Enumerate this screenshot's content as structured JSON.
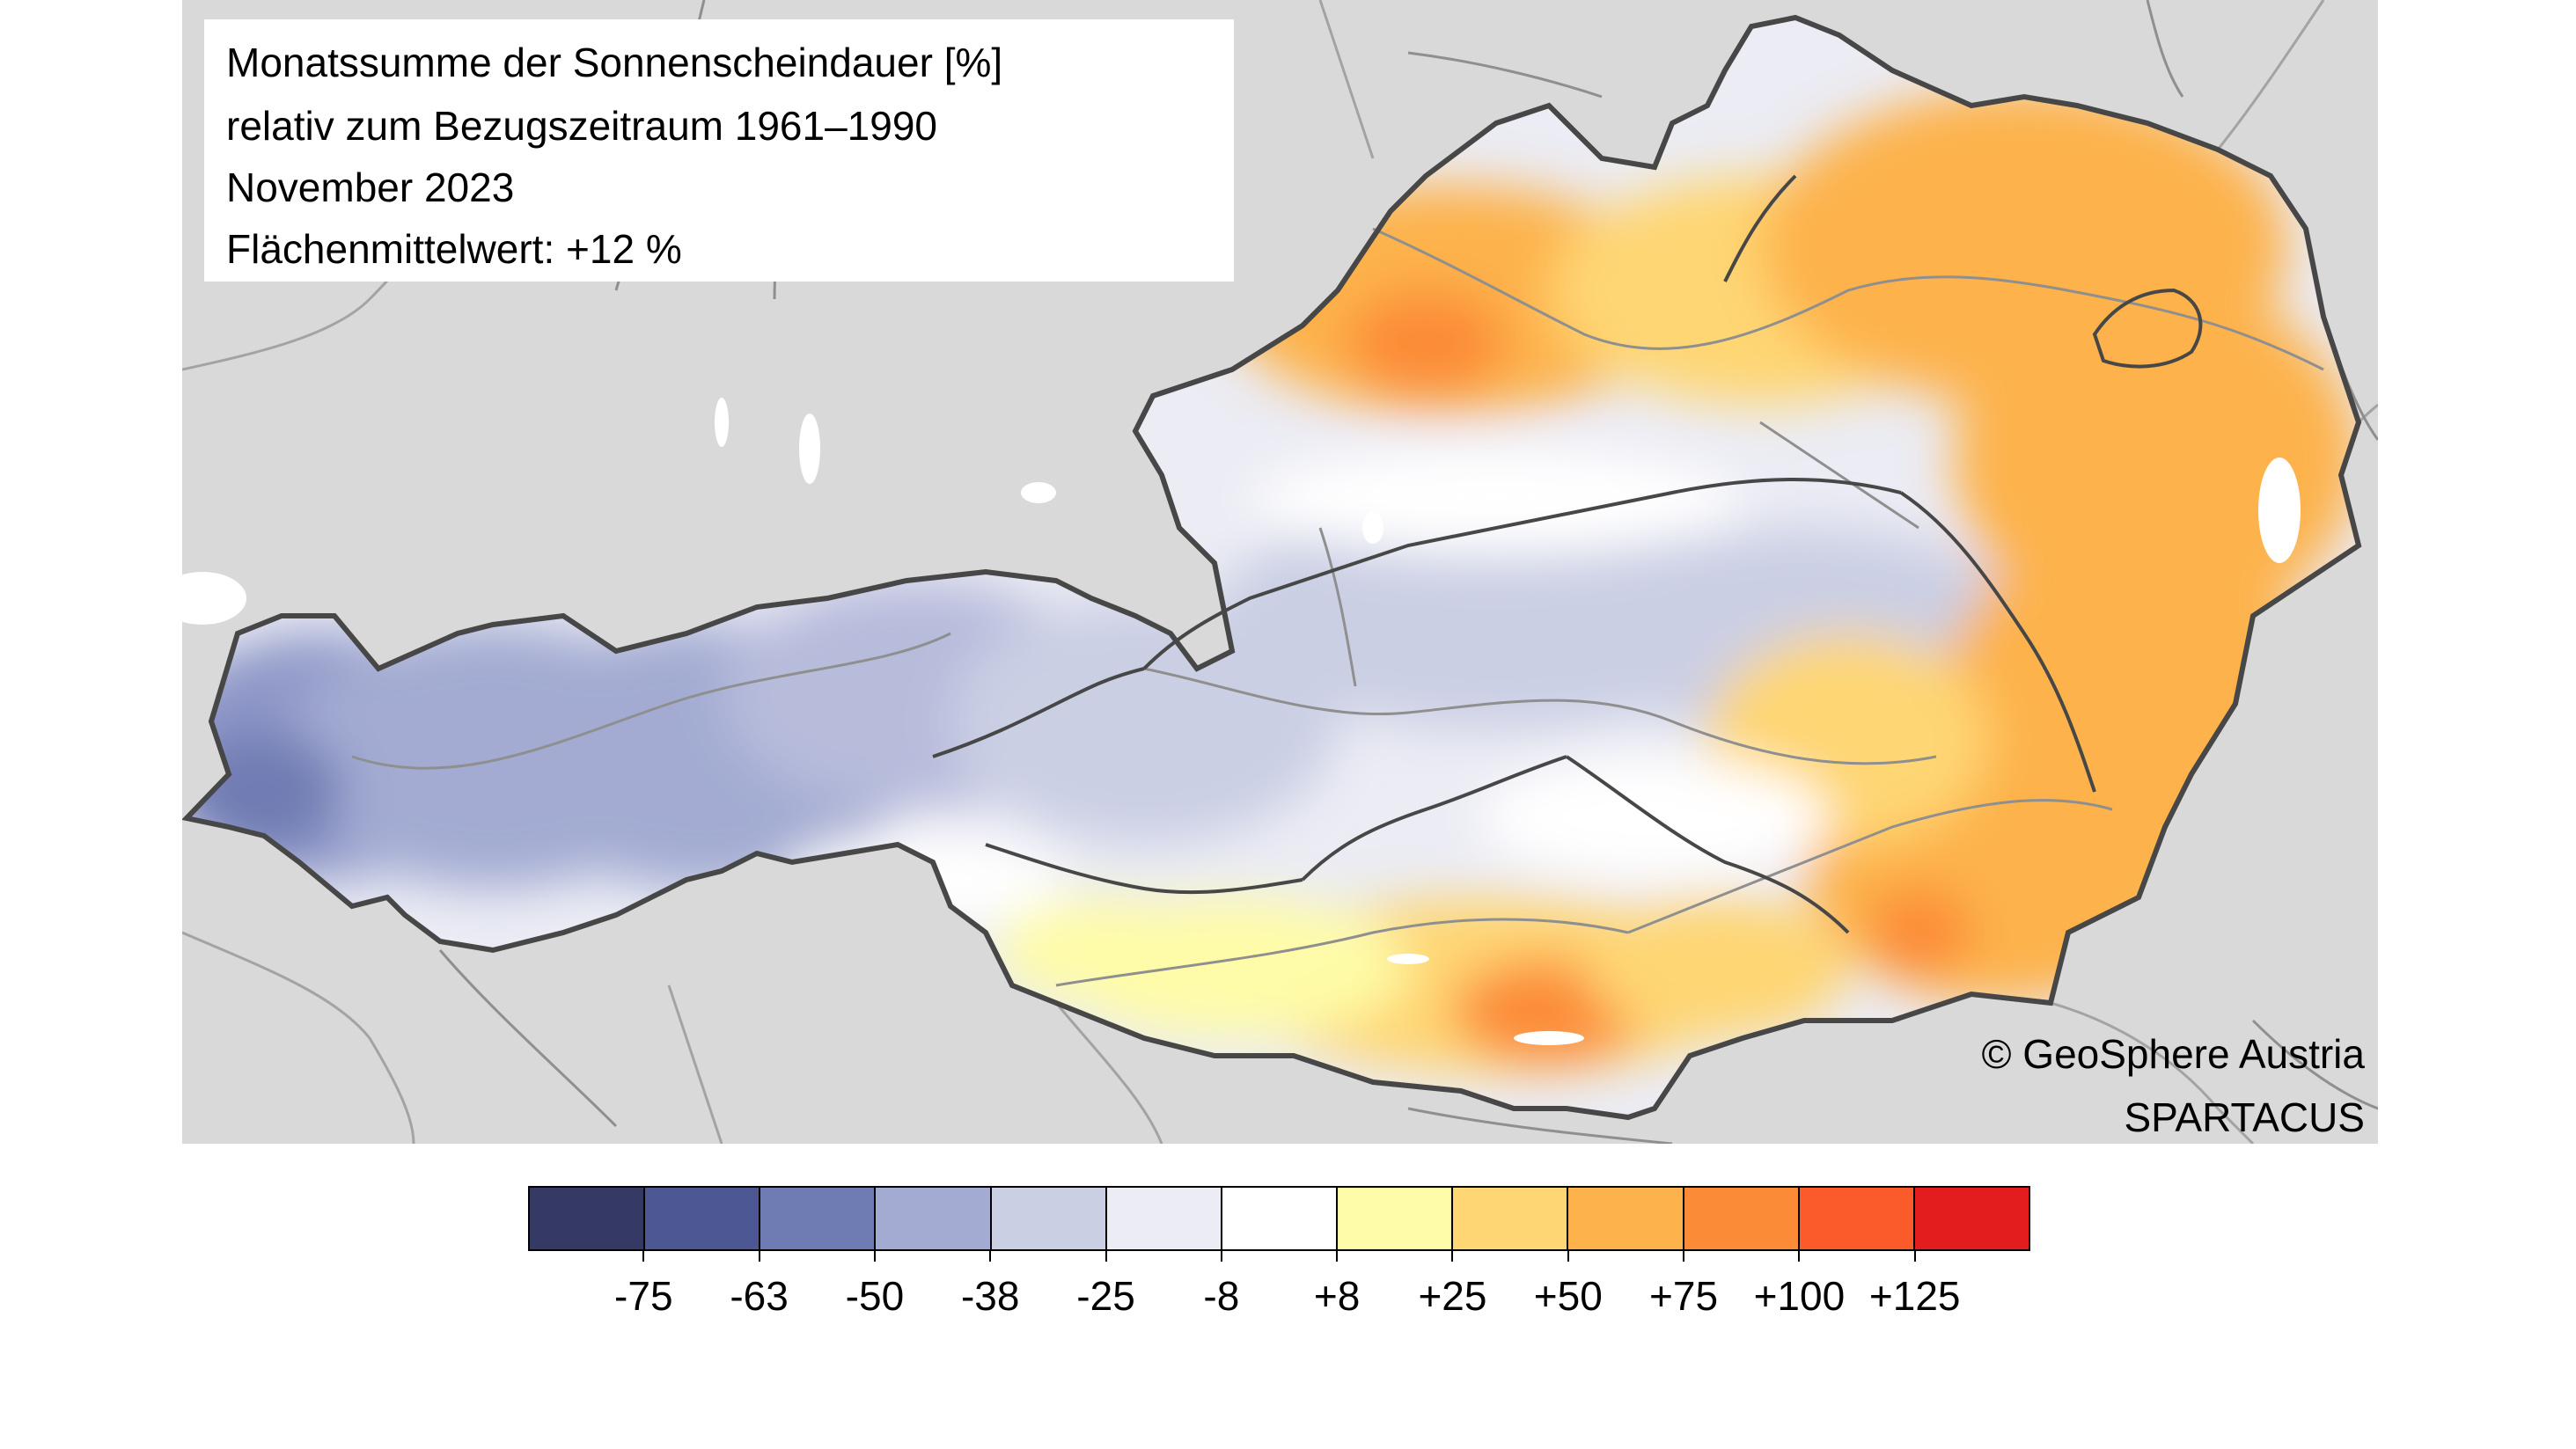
{
  "title": {
    "line1": "Monatssumme der Sonnenscheindauer [%]",
    "line2": "relativ zum Bezugszeitraum 1961–1990",
    "line3": "November 2023",
    "line4": "Flächenmittelwert: +12 %"
  },
  "credits": {
    "copyright": "© GeoSphere Austria",
    "dataset": "SPARTACUS"
  },
  "legend": {
    "colors": [
      "#343a63",
      "#4d5793",
      "#6f7bb3",
      "#a3abd2",
      "#cbcfe4",
      "#ebecf4",
      "#ffffff",
      "#fefca8",
      "#fed673",
      "#fdb24c",
      "#fc8b38",
      "#fb5a2a",
      "#e31d1d"
    ],
    "labels": [
      "-75",
      "-63",
      "-50",
      "-38",
      "-25",
      "-8",
      "+8",
      "+25",
      "+50",
      "+75",
      "+100",
      "+125"
    ]
  },
  "map": {
    "background_color": "#d9d9d9",
    "border_color": "#474747",
    "river_color": "#8f8f8f",
    "lake_color": "#ffffff"
  }
}
